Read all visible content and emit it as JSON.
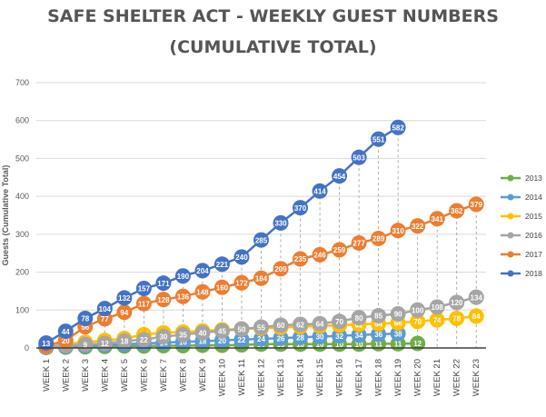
{
  "chart_data": {
    "type": "line",
    "title": "SAFE SHELTER ACT - WEEKLY GUEST NUMBERS",
    "subtitle": "(CUMULATIVE TOTAL)",
    "xlabel": "",
    "ylabel": "Guests (Cumulative Total)",
    "ylim": [
      0,
      700
    ],
    "yticks": [
      0,
      100,
      200,
      300,
      400,
      500,
      600,
      700
    ],
    "grid": true,
    "legend_position": "right",
    "categories": [
      "WEEK 1",
      "WEEK 2",
      "WEEK 3",
      "WEEK 4",
      "WEEK 5",
      "WEEK 6",
      "WEEK 7",
      "WEEK 8",
      "WEEK 9",
      "WEEK 10",
      "WEEK 11",
      "WEEK 12",
      "WEEK 13",
      "WEEK 14",
      "WEEK 15",
      "WEEK 16",
      "WEEK 17",
      "WEEK 18",
      "WEEK 19",
      "WEEK 20",
      "WEEK 21",
      "WEEK 22",
      "WEEK 23"
    ],
    "series": [
      {
        "name": "2013",
        "color": "#70ad47",
        "values": [
          1,
          2,
          3,
          4,
          5,
          5,
          6,
          6,
          7,
          7,
          8,
          10,
          10,
          10,
          10,
          10,
          10,
          11,
          11,
          12,
          null,
          null,
          null
        ]
      },
      {
        "name": "2014",
        "color": "#5b9bd5",
        "values": [
          2,
          4,
          6,
          8,
          10,
          12,
          14,
          16,
          18,
          20,
          22,
          24,
          26,
          28,
          30,
          32,
          34,
          36,
          38,
          null,
          null,
          null,
          null
        ]
      },
      {
        "name": "2015",
        "color": "#ffc000",
        "values": [
          5,
          10,
          15,
          20,
          25,
          35,
          40,
          42,
          45,
          48,
          50,
          52,
          54,
          56,
          58,
          60,
          62,
          64,
          66,
          70,
          74,
          78,
          84
        ]
      },
      {
        "name": "2016",
        "color": "#a5a5a5",
        "values": [
          3,
          6,
          9,
          12,
          18,
          22,
          30,
          35,
          40,
          45,
          50,
          55,
          60,
          62,
          64,
          70,
          80,
          85,
          90,
          100,
          108,
          120,
          134
        ]
      },
      {
        "name": "2017",
        "color": "#ed7d31",
        "values": [
          5,
          20,
          56,
          77,
          94,
          117,
          128,
          136,
          148,
          160,
          172,
          184,
          209,
          235,
          246,
          259,
          277,
          289,
          310,
          322,
          341,
          362,
          379
        ]
      },
      {
        "name": "2018",
        "color": "#4472c4",
        "values": [
          13,
          44,
          78,
          104,
          132,
          157,
          171,
          190,
          204,
          221,
          240,
          285,
          330,
          370,
          414,
          454,
          503,
          551,
          582,
          null,
          null,
          null,
          null
        ]
      }
    ]
  }
}
